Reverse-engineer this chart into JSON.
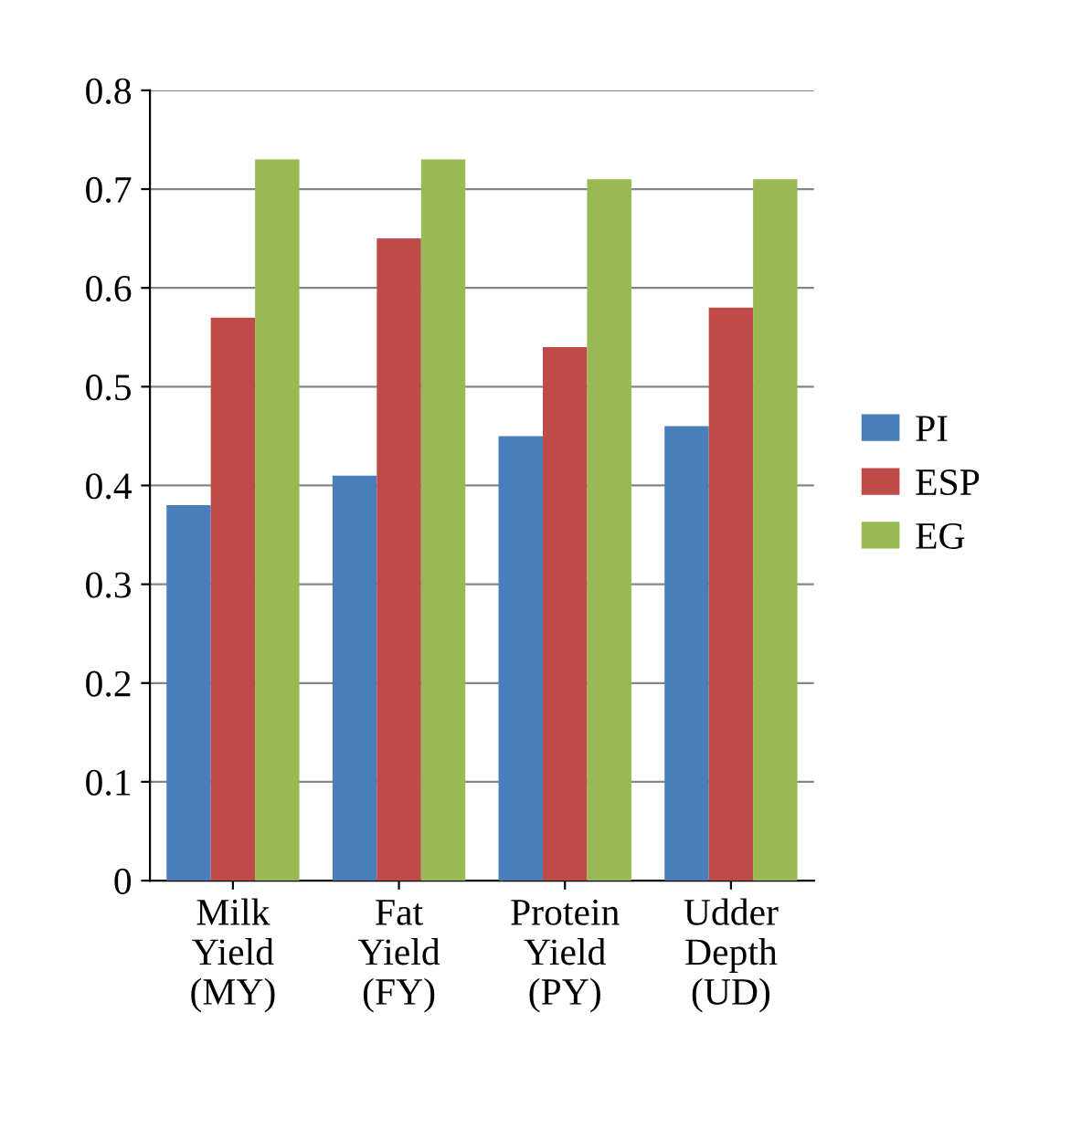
{
  "chart_data": {
    "type": "bar",
    "categories": [
      "Milk\nYield\n(MY)",
      "Fat\nYield\n(FY)",
      "Protein\nYield\n(PY)",
      "Udder\nDepth\n(UD)"
    ],
    "series": [
      {
        "name": "PI",
        "color": "#4a7ebb",
        "values": [
          0.38,
          0.41,
          0.45,
          0.46
        ]
      },
      {
        "name": "ESP",
        "color": "#be4b48",
        "values": [
          0.57,
          0.65,
          0.54,
          0.58
        ]
      },
      {
        "name": "EG",
        "color": "#98b954",
        "values": [
          0.73,
          0.73,
          0.71,
          0.71
        ]
      }
    ],
    "ylim": [
      0,
      0.8
    ],
    "yticks": [
      0,
      0.1,
      0.2,
      0.3,
      0.4,
      0.5,
      0.6,
      0.7,
      0.8
    ],
    "grid": "y",
    "legend": "right"
  }
}
